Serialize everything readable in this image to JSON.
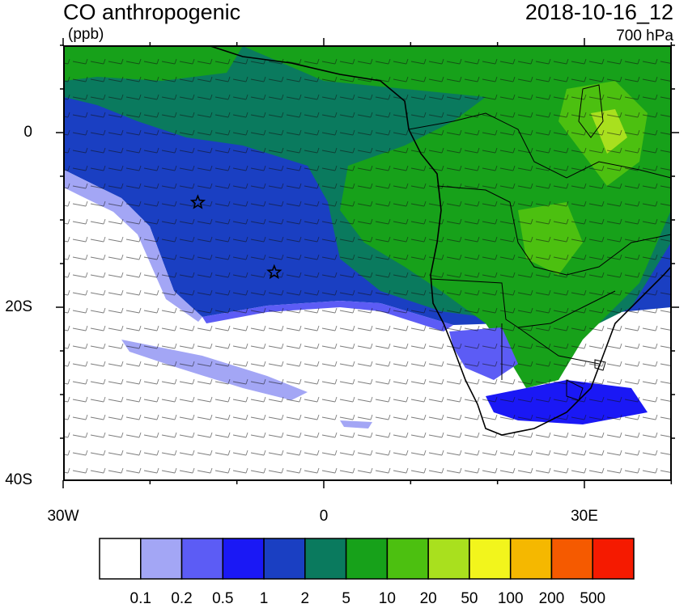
{
  "title": "CO anthropogenic",
  "units": "(ppb)",
  "datetime": "2018-10-16_12",
  "level": "700 hPa",
  "y_ticks": [
    {
      "label": "0",
      "lat": 0
    },
    {
      "label": "20S",
      "lat": -20
    },
    {
      "label": "40S",
      "lat": -40
    }
  ],
  "x_ticks": [
    {
      "label": "30W",
      "lon": -30
    },
    {
      "label": "0",
      "lon": 0
    },
    {
      "label": "30E",
      "lon": 30
    }
  ],
  "colorbar": {
    "colors": [
      "#ffffff",
      "#a3a6f5",
      "#5c5cf5",
      "#1a18f5",
      "#1a3fc2",
      "#0a7a5e",
      "#17a11a",
      "#4cc010",
      "#a9e01e",
      "#f2f51c",
      "#f5b800",
      "#f55a00",
      "#f51a00"
    ],
    "labels": [
      "0.1",
      "0.2",
      "0.5",
      "1",
      "2",
      "5",
      "10",
      "20",
      "50",
      "100",
      "200",
      "500"
    ]
  },
  "markers": [
    {
      "name": "star",
      "lon": -14.5,
      "lat": -8
    },
    {
      "name": "star",
      "lon": -5.7,
      "lat": -16
    }
  ]
}
